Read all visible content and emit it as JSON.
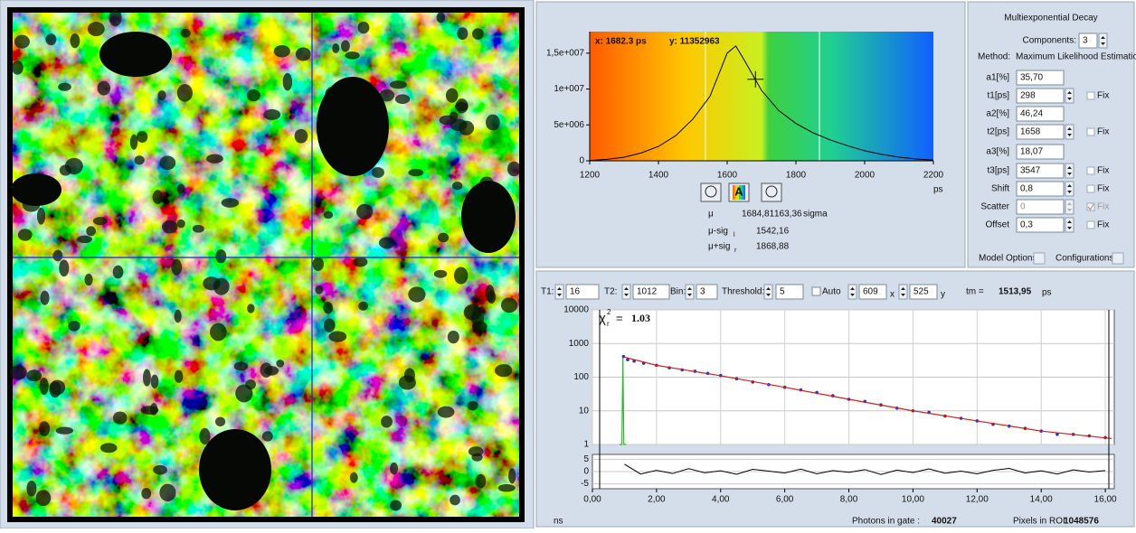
{
  "histogram": {
    "type": "line",
    "color": "#000000",
    "x": [
      1200,
      1250,
      1300,
      1350,
      1400,
      1450,
      1500,
      1550,
      1600,
      1625,
      1650,
      1700,
      1750,
      1800,
      1850,
      1900,
      1950,
      2000,
      2050,
      2100,
      2150,
      2200
    ],
    "values": [
      50000,
      200000,
      500000,
      1100000,
      2000000,
      3500000,
      5800000,
      9000000,
      15000000,
      16000000,
      14000000,
      9800000,
      7000000,
      5200000,
      3900000,
      2900000,
      2100000,
      1400000,
      900000,
      500000,
      250000,
      100000
    ],
    "xlim": [
      1200,
      2200
    ],
    "ylim": [
      0,
      18000000
    ],
    "xticks": [
      1200,
      1400,
      1600,
      1800,
      2000,
      2200
    ],
    "yticks": [
      {
        "value": 0,
        "label": "0"
      },
      {
        "value": 5000000,
        "label": "5e+006"
      },
      {
        "value": 10000000,
        "label": "1e+007"
      },
      {
        "value": 15000000,
        "label": "1,5e+007"
      }
    ],
    "x_unit": "ps",
    "cursor": {
      "x": 1682.3,
      "y": 11352963,
      "x_label": "x: 1682.3 ps",
      "y_label": "y: 11352963"
    }
  },
  "buttons": {
    "auto": "A"
  },
  "stats": {
    "mu_label": "μ",
    "mu": "1684,81",
    "sigma": "163,36",
    "sigma_label": "sigma",
    "lower_label": "μ-sig",
    "lower_sub": "l",
    "lower": "1542,16",
    "upper_label": "μ+sig",
    "upper_sub": "r",
    "upper": "1868,88"
  },
  "model": {
    "title": "Multiexponential Decay",
    "components_label": "Components:",
    "components": "3",
    "method_label": "Method:",
    "method": "Maximum Likelihood Estimation",
    "params": [
      {
        "label": "a1[%]",
        "value": "35,70",
        "spin": false
      },
      {
        "label": "t1[ps]",
        "value": "298",
        "spin": true,
        "fix": "Fix",
        "fix_checked": false,
        "disabled": false
      },
      {
        "label": "a2[%]",
        "value": "46,24",
        "spin": false
      },
      {
        "label": "t2[ps]",
        "value": "1658",
        "spin": true,
        "fix": "Fix",
        "fix_checked": false,
        "disabled": false
      },
      {
        "label": "a3[%]",
        "value": "18,07",
        "spin": false
      },
      {
        "label": "t3[ps]",
        "value": "3547",
        "spin": true,
        "fix": "Fix",
        "fix_checked": false,
        "disabled": false
      },
      {
        "label": "Shift",
        "value": "0,8",
        "spin": true,
        "fix": "Fix",
        "fix_checked": false,
        "disabled": false
      },
      {
        "label": "Scatter",
        "value": "0",
        "spin": true,
        "fix": "Fix",
        "fix_checked": true,
        "disabled": true
      },
      {
        "label": "Offset",
        "value": "0,3",
        "spin": true,
        "fix": "Fix",
        "fix_checked": false,
        "disabled": false
      }
    ],
    "model_options": "Model Options",
    "configurations": "Configurations"
  },
  "controls": {
    "t1_label": "T1:",
    "t1": "16",
    "t2_label": "T2:",
    "t2": "1012",
    "bin_label": "Bin:",
    "bin": "3",
    "threshold_label": "Threshold:",
    "threshold": "5",
    "auto_label": "Auto",
    "x": "609",
    "x_suffix": "x",
    "y": "525",
    "y_suffix": "y",
    "tm_label": "tm =",
    "tm": "1513,95",
    "tm_unit": "ps"
  },
  "decay": {
    "type": "scatter",
    "log_y": true,
    "grid": true,
    "xlim": [
      0,
      16.28
    ],
    "ylim": [
      1,
      10000
    ],
    "yticks": [
      1,
      10,
      100,
      1000,
      10000
    ],
    "xticks": [
      {
        "value": 0,
        "label": "0,00"
      },
      {
        "value": 2,
        "label": "2,00"
      },
      {
        "value": 4,
        "label": "4,00"
      },
      {
        "value": 6,
        "label": "6,00"
      },
      {
        "value": 8,
        "label": "8,00"
      },
      {
        "value": 10,
        "label": "10,00"
      },
      {
        "value": 12,
        "label": "12,00"
      },
      {
        "value": 14,
        "label": "14,00"
      },
      {
        "value": 16,
        "label": "16,00"
      }
    ],
    "x_unit": "ns",
    "chi_label": "χ",
    "chi_sup": "2",
    "chi_sub": "r",
    "chi_eq": "=",
    "chi": "1.03",
    "series": [
      {
        "kind": "line",
        "color": "#22c022",
        "x": [
          0.85,
          0.92,
          0.95,
          0.98,
          1.05
        ],
        "values": [
          1,
          1,
          380,
          1,
          1
        ]
      },
      {
        "kind": "points",
        "color": "#2233cc",
        "x": [
          0.97,
          1.1,
          1.3,
          1.6,
          2.0,
          2.4,
          2.8,
          3.2,
          3.6,
          4.0,
          4.5,
          5.0,
          5.5,
          6.0,
          6.5,
          7.0,
          7.5,
          8.0,
          8.5,
          9.0,
          9.5,
          10.0,
          10.5,
          11.0,
          11.5,
          12.0,
          12.5,
          13.0,
          13.5,
          14.0,
          14.5,
          15.0,
          15.5,
          16.0
        ],
        "values": [
          410,
          330,
          300,
          260,
          225,
          190,
          165,
          150,
          130,
          112,
          90,
          72,
          60,
          50,
          42,
          35,
          28,
          22,
          19,
          15,
          12,
          10,
          9,
          7,
          6,
          5,
          4,
          3.5,
          3,
          2.5,
          2,
          2,
          1.8,
          1.6
        ]
      },
      {
        "kind": "line",
        "color": "#d02020",
        "x": [
          0.97,
          2,
          4,
          6,
          8,
          10,
          12,
          14,
          16.2
        ],
        "values": [
          400,
          225,
          110,
          50,
          22,
          10,
          5,
          2.5,
          1.5
        ]
      }
    ]
  },
  "residuals": {
    "type": "line",
    "color": "#000000",
    "ylim": [
      -7,
      7
    ],
    "yticks": [
      5,
      0,
      -5
    ],
    "x": [
      1,
      1.5,
      2,
      2.5,
      3,
      3.5,
      4,
      4.5,
      5,
      5.5,
      6,
      6.5,
      7,
      7.5,
      8,
      8.5,
      9,
      9.5,
      10,
      10.5,
      11,
      11.5,
      12,
      12.5,
      13,
      13.5,
      14,
      14.5,
      15,
      15.5,
      16
    ],
    "values": [
      3,
      -1,
      0.5,
      -0.8,
      1.2,
      -0.5,
      0.3,
      -1.1,
      0.9,
      0.2,
      -0.6,
      1.0,
      -0.9,
      0.4,
      -0.3,
      0.8,
      -1.2,
      0.6,
      -0.4,
      1.1,
      -0.7,
      0.2,
      -0.9,
      0.5,
      1.3,
      -0.6,
      0.3,
      -1.0,
      0.7,
      -0.2,
      0.4
    ]
  },
  "footer": {
    "photons_label": "Photons in gate :",
    "photons": "40027",
    "pixels_label": "Pixels in ROI:",
    "pixels": "1048576"
  }
}
